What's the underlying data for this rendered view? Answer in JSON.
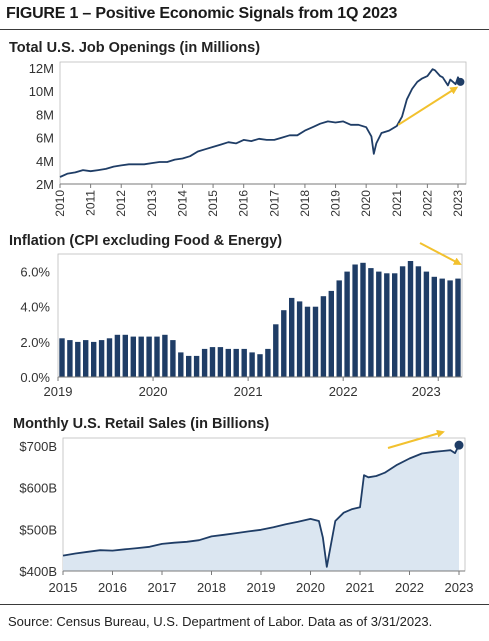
{
  "figure_title": "FIGURE 1 – Positive Economic Signals from 1Q 2023",
  "source_note": "Source: Census Bureau, U.S. Department of Labor. Data as of 3/31/2023.",
  "colors": {
    "navy": "#1f3d66",
    "arrow": "#f2c12e",
    "fill": "#dbe6f1",
    "axis": "#7a7a7a",
    "frame": "#bdbdbd"
  },
  "chart_data": [
    {
      "type": "line",
      "title": "Total U.S. Job Openings (in Millions)",
      "xlabel": "",
      "ylabel": "",
      "x_range": [
        2010,
        2023
      ],
      "ylim": [
        2,
        12
      ],
      "yticks": [
        2,
        4,
        6,
        8,
        10,
        12
      ],
      "ytick_labels": [
        "2M",
        "4M",
        "6M",
        "8M",
        "10M",
        "12M"
      ],
      "xtick_labels": [
        "2010",
        "2011",
        "2012",
        "2013",
        "2014",
        "2015",
        "2016",
        "2017",
        "2018",
        "2019",
        "2020",
        "2021",
        "2022",
        "2023"
      ],
      "series": [
        {
          "x": [
            2010.0,
            2010.25,
            2010.5,
            2010.75,
            2011.0,
            2011.25,
            2011.5,
            2011.75,
            2012.0,
            2012.25,
            2012.5,
            2012.75,
            2013.0,
            2013.25,
            2013.5,
            2013.75,
            2014.0,
            2014.25,
            2014.5,
            2014.75,
            2015.0,
            2015.25,
            2015.5,
            2015.75,
            2016.0,
            2016.25,
            2016.5,
            2016.75,
            2017.0,
            2017.25,
            2017.5,
            2017.75,
            2018.0,
            2018.25,
            2018.5,
            2018.75,
            2019.0,
            2019.25,
            2019.5,
            2019.75,
            2020.0,
            2020.17,
            2020.25,
            2020.33,
            2020.5,
            2020.75,
            2021.0,
            2021.17,
            2021.33,
            2021.5,
            2021.67,
            2021.83,
            2022.0,
            2022.17,
            2022.25,
            2022.42,
            2022.5,
            2022.67,
            2022.75,
            2022.92,
            2023.0,
            2023.08
          ],
          "values": [
            2.6,
            2.9,
            3.0,
            3.2,
            3.1,
            3.2,
            3.3,
            3.5,
            3.6,
            3.7,
            3.7,
            3.7,
            3.8,
            3.9,
            3.9,
            4.1,
            4.2,
            4.4,
            4.8,
            5.0,
            5.2,
            5.4,
            5.6,
            5.5,
            5.8,
            5.7,
            5.9,
            5.8,
            5.8,
            6.0,
            6.2,
            6.2,
            6.6,
            6.9,
            7.2,
            7.4,
            7.3,
            7.4,
            7.1,
            7.1,
            6.9,
            6.1,
            4.6,
            5.5,
            6.4,
            6.6,
            7.0,
            7.8,
            9.3,
            10.2,
            10.8,
            11.1,
            11.3,
            11.9,
            11.8,
            11.3,
            11.2,
            10.5,
            11.0,
            10.6,
            11.2,
            10.8
          ]
        }
      ]
    },
    {
      "type": "bar",
      "title": "Inflation (CPI excluding Food & Energy)",
      "xlabel": "",
      "ylabel": "",
      "ylim": [
        0,
        7
      ],
      "yticks": [
        0,
        2,
        4,
        6
      ],
      "ytick_labels": [
        "0.0%",
        "2.0%",
        "4.0%",
        "6.0%"
      ],
      "xtick_labels": [
        "2019",
        "2020",
        "2021",
        "2022",
        "2023"
      ],
      "start": "2019-01",
      "values": [
        2.2,
        2.1,
        2.0,
        2.1,
        2.0,
        2.1,
        2.2,
        2.4,
        2.4,
        2.3,
        2.3,
        2.3,
        2.3,
        2.4,
        2.1,
        1.4,
        1.2,
        1.2,
        1.6,
        1.7,
        1.7,
        1.6,
        1.6,
        1.6,
        1.4,
        1.3,
        1.6,
        3.0,
        3.8,
        4.5,
        4.3,
        4.0,
        4.0,
        4.6,
        4.9,
        5.5,
        6.0,
        6.4,
        6.5,
        6.2,
        6.0,
        5.9,
        5.9,
        6.3,
        6.6,
        6.3,
        6.0,
        5.7,
        5.6,
        5.5,
        5.6
      ]
    },
    {
      "type": "area",
      "title": "Monthly U.S. Retail Sales (in Billions)",
      "xlabel": "",
      "ylabel": "",
      "x_range": [
        2015,
        2023
      ],
      "ylim": [
        400,
        700
      ],
      "yticks": [
        400,
        500,
        600,
        700
      ],
      "ytick_labels": [
        "$400B",
        "$500B",
        "$600B",
        "$700B"
      ],
      "xtick_labels": [
        "2015",
        "2016",
        "2017",
        "2018",
        "2019",
        "2020",
        "2021",
        "2022",
        "2023"
      ],
      "series": [
        {
          "x": [
            2015.0,
            2015.25,
            2015.5,
            2015.75,
            2016.0,
            2016.25,
            2016.5,
            2016.75,
            2017.0,
            2017.25,
            2017.5,
            2017.75,
            2018.0,
            2018.25,
            2018.5,
            2018.75,
            2019.0,
            2019.25,
            2019.5,
            2019.75,
            2020.0,
            2020.17,
            2020.25,
            2020.33,
            2020.5,
            2020.67,
            2020.83,
            2021.0,
            2021.08,
            2021.17,
            2021.33,
            2021.5,
            2021.75,
            2022.0,
            2022.25,
            2022.5,
            2022.67,
            2022.83,
            2022.92,
            2023.0
          ],
          "values": [
            437,
            442,
            446,
            450,
            449,
            452,
            455,
            458,
            465,
            468,
            470,
            474,
            483,
            487,
            491,
            495,
            499,
            505,
            512,
            518,
            525,
            520,
            480,
            410,
            520,
            540,
            548,
            553,
            630,
            625,
            628,
            636,
            655,
            670,
            682,
            686,
            688,
            690,
            683,
            702
          ]
        }
      ]
    }
  ]
}
